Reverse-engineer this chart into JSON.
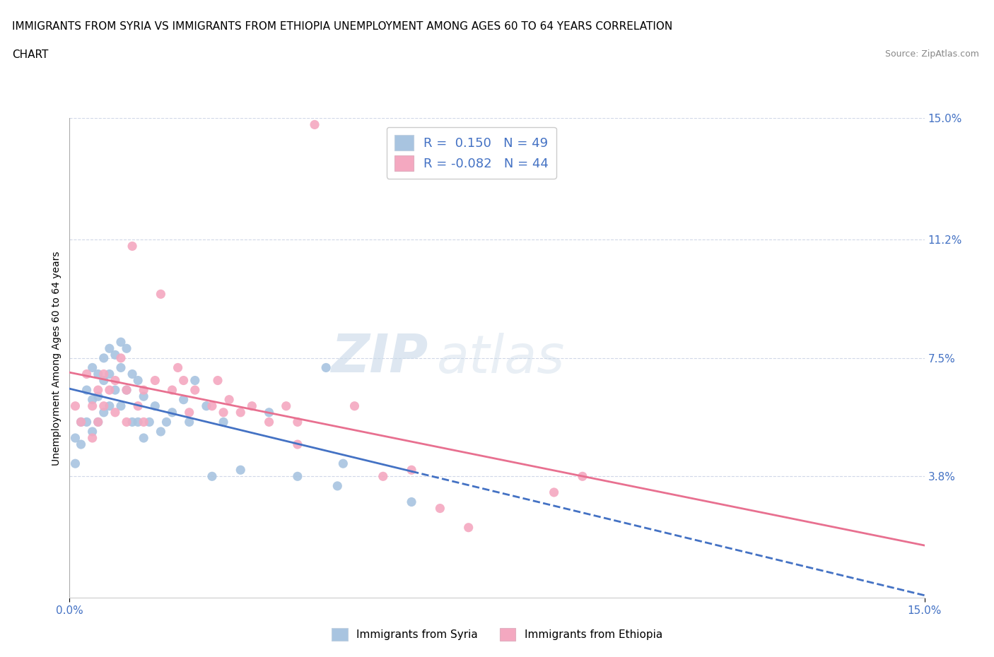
{
  "title_line1": "IMMIGRANTS FROM SYRIA VS IMMIGRANTS FROM ETHIOPIA UNEMPLOYMENT AMONG AGES 60 TO 64 YEARS CORRELATION",
  "title_line2": "CHART",
  "source_text": "Source: ZipAtlas.com",
  "ylabel": "Unemployment Among Ages 60 to 64 years",
  "x_min": 0.0,
  "x_max": 0.15,
  "y_min": 0.0,
  "y_max": 0.15,
  "x_ticks": [
    0.0,
    0.15
  ],
  "x_tick_labels": [
    "0.0%",
    "15.0%"
  ],
  "y_ticks": [
    0.038,
    0.075,
    0.112,
    0.15
  ],
  "y_tick_labels": [
    "3.8%",
    "7.5%",
    "11.2%",
    "15.0%"
  ],
  "syria_R": 0.15,
  "syria_N": 49,
  "ethiopia_R": -0.082,
  "ethiopia_N": 44,
  "syria_color": "#a8c4e0",
  "ethiopia_color": "#f4a8c0",
  "syria_line_color": "#4472c4",
  "ethiopia_line_color": "#e87090",
  "watermark_text": "ZIP",
  "watermark_text2": "atlas",
  "background_color": "#ffffff",
  "grid_color": "#d0d8e8",
  "title_fontsize": 11,
  "axis_label_fontsize": 10,
  "tick_fontsize": 11,
  "legend_fontsize": 13,
  "syria_points_x": [
    0.001,
    0.001,
    0.002,
    0.002,
    0.003,
    0.003,
    0.004,
    0.004,
    0.004,
    0.005,
    0.005,
    0.005,
    0.006,
    0.006,
    0.006,
    0.007,
    0.007,
    0.007,
    0.008,
    0.008,
    0.009,
    0.009,
    0.009,
    0.01,
    0.01,
    0.011,
    0.011,
    0.012,
    0.012,
    0.013,
    0.013,
    0.014,
    0.015,
    0.016,
    0.017,
    0.018,
    0.02,
    0.021,
    0.022,
    0.024,
    0.025,
    0.027,
    0.03,
    0.035,
    0.04,
    0.045,
    0.047,
    0.048,
    0.06
  ],
  "syria_points_y": [
    0.05,
    0.042,
    0.055,
    0.048,
    0.065,
    0.055,
    0.072,
    0.062,
    0.052,
    0.07,
    0.063,
    0.055,
    0.075,
    0.068,
    0.058,
    0.078,
    0.07,
    0.06,
    0.076,
    0.065,
    0.08,
    0.072,
    0.06,
    0.078,
    0.065,
    0.07,
    0.055,
    0.068,
    0.055,
    0.063,
    0.05,
    0.055,
    0.06,
    0.052,
    0.055,
    0.058,
    0.062,
    0.055,
    0.068,
    0.06,
    0.038,
    0.055,
    0.04,
    0.058,
    0.038,
    0.072,
    0.035,
    0.042,
    0.03
  ],
  "ethiopia_points_x": [
    0.001,
    0.002,
    0.003,
    0.004,
    0.004,
    0.005,
    0.005,
    0.006,
    0.006,
    0.007,
    0.008,
    0.008,
    0.009,
    0.01,
    0.01,
    0.011,
    0.012,
    0.013,
    0.013,
    0.015,
    0.016,
    0.018,
    0.019,
    0.02,
    0.021,
    0.022,
    0.025,
    0.026,
    0.027,
    0.028,
    0.03,
    0.032,
    0.035,
    0.038,
    0.04,
    0.043,
    0.05,
    0.055,
    0.06,
    0.065,
    0.07,
    0.085,
    0.09,
    0.04
  ],
  "ethiopia_points_y": [
    0.06,
    0.055,
    0.07,
    0.06,
    0.05,
    0.065,
    0.055,
    0.07,
    0.06,
    0.065,
    0.068,
    0.058,
    0.075,
    0.065,
    0.055,
    0.11,
    0.06,
    0.065,
    0.055,
    0.068,
    0.095,
    0.065,
    0.072,
    0.068,
    0.058,
    0.065,
    0.06,
    0.068,
    0.058,
    0.062,
    0.058,
    0.06,
    0.055,
    0.06,
    0.055,
    0.148,
    0.06,
    0.038,
    0.04,
    0.028,
    0.022,
    0.033,
    0.038,
    0.048
  ]
}
